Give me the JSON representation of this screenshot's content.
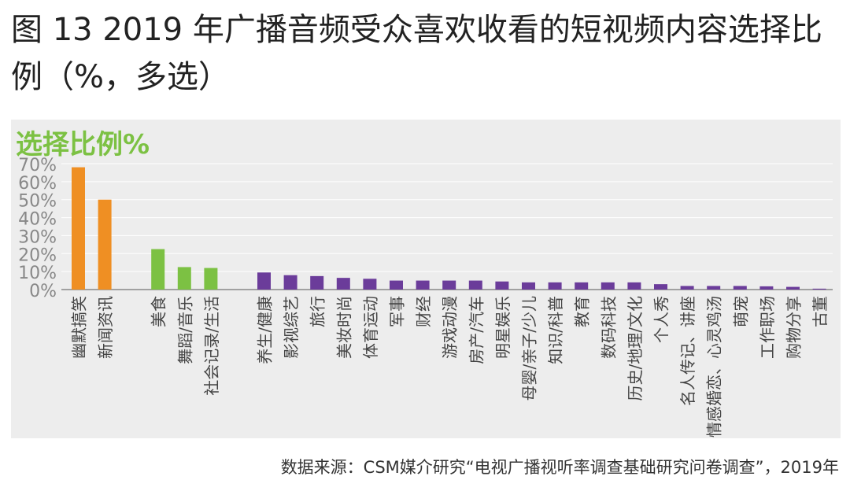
{
  "title": "图 13 2019 年广播音频受众喜欢收看的短视频内容选择比例（%，多选）",
  "panel_title": "选择比例%",
  "source": "数据来源：CSM媒介研究“电视广播视听率调查基础研究问卷调查”，2019年",
  "colors": {
    "orange": "#ef8f23",
    "green": "#7cc143",
    "purple": "#6b3c9a",
    "grid": "#ffffff",
    "axis": "#888888"
  },
  "chart_data": {
    "type": "bar",
    "ylim": [
      0,
      70
    ],
    "yticks": [
      "0%",
      "10%",
      "20%",
      "30%",
      "40%",
      "50%",
      "60%",
      "70%"
    ],
    "categories": [
      "幽默搞笑",
      "新闻资讯",
      "美食",
      "舞蹈/音乐",
      "社会记录/生活",
      "养生/健康",
      "影视综艺",
      "旅行",
      "美妆时尚",
      "体育运动",
      "军事",
      "财经",
      "游戏动漫",
      "房产/汽车",
      "明星娱乐",
      "母婴/亲子/少儿",
      "知识/科普",
      "教育",
      "数码科技",
      "历史/地理/文化",
      "个人秀",
      "名人传记、讲座",
      "情感婚恋、心灵鸡汤",
      "萌宠",
      "工作职场",
      "购物分享",
      "古董"
    ],
    "groups": [
      "orange",
      "orange",
      "green",
      "green",
      "green",
      "purple",
      "purple",
      "purple",
      "purple",
      "purple",
      "purple",
      "purple",
      "purple",
      "purple",
      "purple",
      "purple",
      "purple",
      "purple",
      "purple",
      "purple",
      "purple",
      "purple",
      "purple",
      "purple",
      "purple",
      "purple",
      "purple"
    ],
    "values": [
      68,
      50,
      22.5,
      12.5,
      12,
      9.5,
      8,
      7.5,
      6.5,
      6,
      5,
      5,
      5,
      5,
      4.5,
      4,
      4,
      4,
      4,
      4,
      3,
      2,
      2,
      2,
      1.8,
      1.5,
      0.5
    ]
  }
}
